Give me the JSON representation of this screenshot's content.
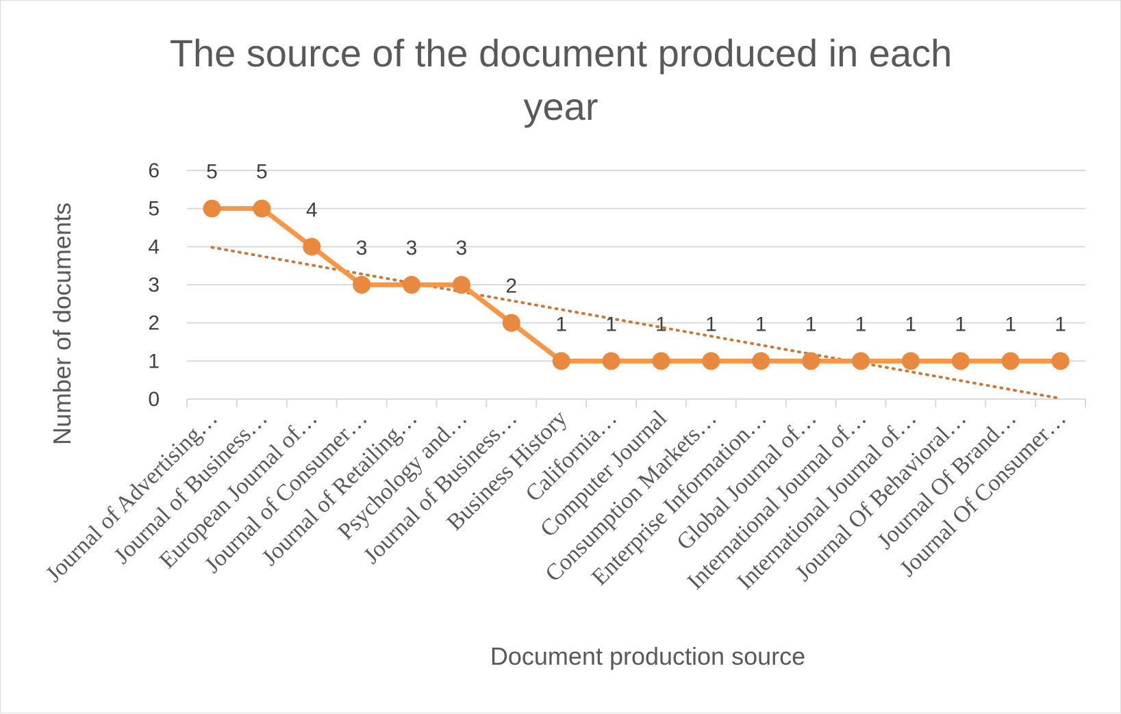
{
  "colors": {
    "series": "#F79646",
    "marker": "#E8893F",
    "trend": "#C47A3A"
  },
  "chart_data": {
    "type": "line",
    "title": "The source of the document produced in each year",
    "title_lines": [
      "The source of the document produced in each",
      "year"
    ],
    "xlabel": "Document production source",
    "ylabel": "Number of documents",
    "ylim": [
      0,
      6
    ],
    "yticks": [
      0,
      1,
      2,
      3,
      4,
      5,
      6
    ],
    "grid": true,
    "trendline": "linear",
    "categories": [
      "Journal of Advertising…",
      "Journal of Business…",
      "European Journal  of…",
      "Journal of Consumer…",
      "Journal of Retailing…",
      "Psychology and…",
      "Journal of Business…",
      "Business History",
      "California…",
      "Computer Journal",
      "Consumption Markets…",
      "Enterprise Information…",
      "Global Journal of…",
      "International Journal of…",
      "International Journal of…",
      "Journal Of Behavioral…",
      "Journal Of Brand…",
      "Journal Of Consumer…"
    ],
    "series": [
      {
        "name": "Number of documents",
        "values": [
          5,
          5,
          4,
          3,
          3,
          3,
          2,
          1,
          1,
          1,
          1,
          1,
          1,
          1,
          1,
          1,
          1,
          1
        ]
      }
    ]
  }
}
